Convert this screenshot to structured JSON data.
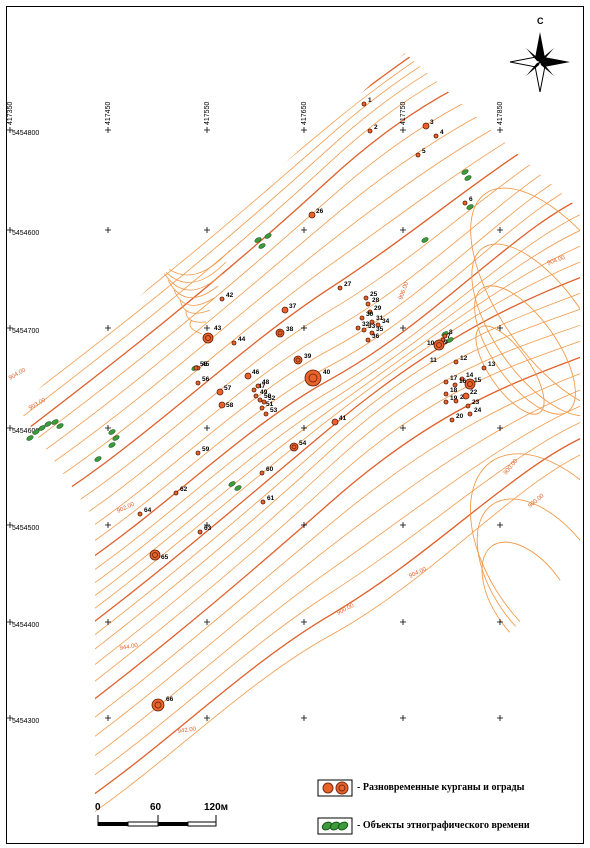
{
  "north_label": "С",
  "grid": {
    "x_labels": [
      "417350",
      "417450",
      "417550",
      "417650",
      "417750",
      "417850"
    ],
    "y_labels": [
      "5454800",
      "5454600",
      "5454700",
      "5454500",
      "5454400",
      "5454300"
    ],
    "y_label_display": [
      "5454800",
      "5454600",
      "5454700",
      "5454600",
      "5454500",
      "5454400",
      "5454300"
    ]
  },
  "contour_labels": [
    "904.00",
    "903.00",
    "902.00",
    "900.00",
    "906.00",
    "904.00",
    "900.00",
    "900.00",
    "904.00",
    "944.00",
    "942.00"
  ],
  "markers": [
    {
      "n": "1"
    },
    {
      "n": "2"
    },
    {
      "n": "3"
    },
    {
      "n": "4"
    },
    {
      "n": "5"
    },
    {
      "n": "6"
    },
    {
      "n": "7"
    },
    {
      "n": "8"
    },
    {
      "n": "9"
    },
    {
      "n": "10"
    },
    {
      "n": "11"
    },
    {
      "n": "12"
    },
    {
      "n": "13"
    },
    {
      "n": "14"
    },
    {
      "n": "15"
    },
    {
      "n": "16"
    },
    {
      "n": "17"
    },
    {
      "n": "18"
    },
    {
      "n": "19"
    },
    {
      "n": "20"
    },
    {
      "n": "21"
    },
    {
      "n": "22"
    },
    {
      "n": "23"
    },
    {
      "n": "24"
    },
    {
      "n": "25"
    },
    {
      "n": "26"
    },
    {
      "n": "27"
    },
    {
      "n": "28"
    },
    {
      "n": "29"
    },
    {
      "n": "30"
    },
    {
      "n": "31"
    },
    {
      "n": "32"
    },
    {
      "n": "33"
    },
    {
      "n": "34"
    },
    {
      "n": "35"
    },
    {
      "n": "36"
    },
    {
      "n": "37"
    },
    {
      "n": "38"
    },
    {
      "n": "39"
    },
    {
      "n": "40"
    },
    {
      "n": "41"
    },
    {
      "n": "42"
    },
    {
      "n": "43"
    },
    {
      "n": "44"
    },
    {
      "n": "45"
    },
    {
      "n": "46"
    },
    {
      "n": "47"
    },
    {
      "n": "48"
    },
    {
      "n": "49"
    },
    {
      "n": "50"
    },
    {
      "n": "51"
    },
    {
      "n": "52"
    },
    {
      "n": "53"
    },
    {
      "n": "54"
    },
    {
      "n": "55"
    },
    {
      "n": "56"
    },
    {
      "n": "57"
    },
    {
      "n": "58"
    },
    {
      "n": "59"
    },
    {
      "n": "60"
    },
    {
      "n": "61"
    },
    {
      "n": "62"
    },
    {
      "n": "63"
    },
    {
      "n": "64"
    },
    {
      "n": "65"
    },
    {
      "n": "66"
    }
  ],
  "legend": {
    "kurgans": "- Разновременные курганы и ограды",
    "ethno": "- Объекты этнографического времени"
  },
  "scale": {
    "labels": [
      "0",
      "60",
      "120м"
    ]
  },
  "colors": {
    "contour": "#f29a4a",
    "contour_index": "#e0602a",
    "kurgan_fill": "#e8622a",
    "ethno_fill": "#3d9a3d"
  }
}
